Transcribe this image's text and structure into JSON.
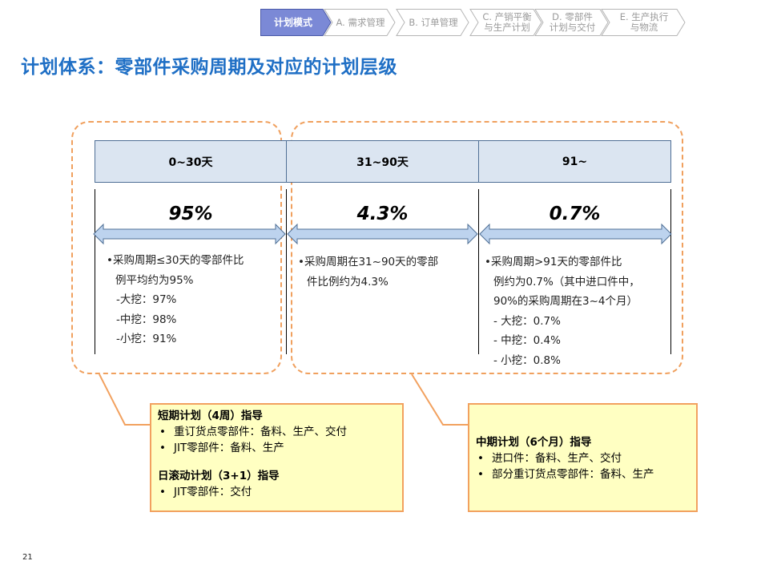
{
  "nav": {
    "tabs": [
      {
        "label": "计划模式",
        "active": true
      },
      {
        "label": "A. 需求管理",
        "active": false
      },
      {
        "label": "B. 订单管理",
        "active": false
      },
      {
        "label": "C. 产销平衡\n与生产计划",
        "active": false
      },
      {
        "label": "D. 零部件\n计划与交付",
        "active": false
      },
      {
        "label": "E. 生产执行\n与物流",
        "active": false
      }
    ]
  },
  "title": "计划体系：零部件采购周期及对应的计划层级",
  "columns": [
    {
      "header": "0~30天",
      "percent": "95%",
      "lines": [
        "•采购周期≤30天的零部件比",
        "例平均约为95%",
        "-大挖：97%",
        "-中挖：98%",
        "-小挖：91%"
      ]
    },
    {
      "header": "31~90天",
      "percent": "4.3%",
      "lines": [
        "•采购周期在31~90天的零部",
        "件比例约为4.3%"
      ]
    },
    {
      "header": "91~",
      "percent": "0.7%",
      "lines": [
        "•采购周期>91天的零部件比",
        "例约为0.7%（其中进口件中，",
        "90%的采购周期在3~4个月）",
        "- 大挖：0.7%",
        "- 中挖：0.4%",
        "- 小挖：0.8%"
      ]
    }
  ],
  "callouts": {
    "short": {
      "title1": "短期计划（4周）指导",
      "items1": [
        "重订货点零部件：备料、生产、交付",
        "JIT零部件：备料、生产"
      ],
      "title2": "日滚动计划（3+1）指导",
      "items2": [
        "JIT零部件：交付"
      ]
    },
    "mid": {
      "title": "中期计划（6个月）指导",
      "items": [
        "进口件：备料、生产、交付",
        "部分重订货点零部件：备料、生产"
      ]
    }
  },
  "page_number": "21",
  "colors": {
    "title": "#1f6fc5",
    "nav_active": "#7b89d6",
    "header_fill": "#dbe5f1",
    "arrow_fill": "#bdd3ee",
    "dash": "#f0a05e",
    "callout_fill": "#ffffc2"
  }
}
